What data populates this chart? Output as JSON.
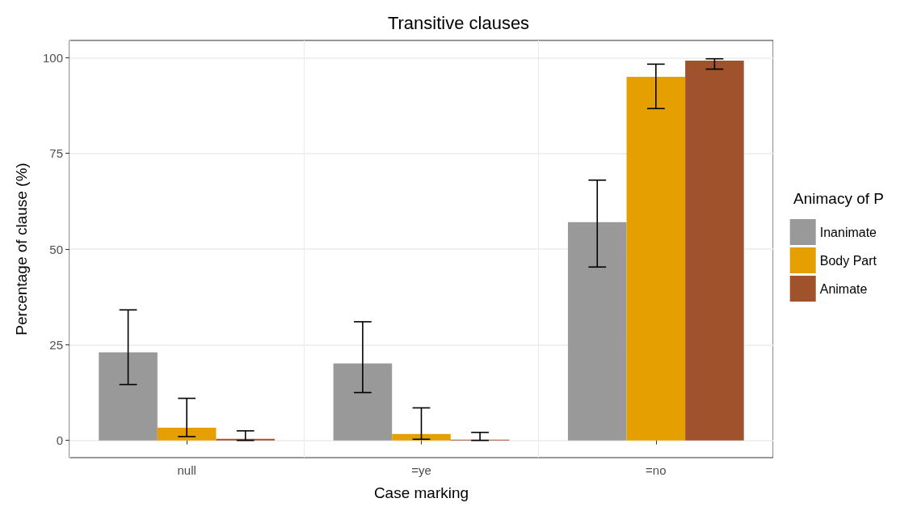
{
  "chart_data": {
    "type": "bar",
    "title": "Transitive clauses",
    "xlabel": "Case marking",
    "ylabel": "Percentage of clause (%)",
    "legend_title": "Animacy of P",
    "categories": [
      "null",
      "=ye",
      "=no"
    ],
    "series": [
      {
        "name": "Inanimate",
        "color": "#999999",
        "values": [
          23,
          20.1,
          57
        ],
        "errors": [
          [
            14.6,
            34.1
          ],
          [
            12.5,
            31
          ],
          [
            45.3,
            68
          ]
        ]
      },
      {
        "name": "Body Part",
        "color": "#e69f00",
        "values": [
          3.3,
          1.7,
          95
        ],
        "errors": [
          [
            1,
            11
          ],
          [
            0.3,
            8.5
          ],
          [
            86.7,
            98.3
          ]
        ]
      },
      {
        "name": "Animate",
        "color": "#a0522d",
        "values": [
          0.4,
          0.2,
          99.2
        ],
        "errors": [
          [
            0,
            2.5
          ],
          [
            0,
            2.1
          ],
          [
            97,
            99.7
          ]
        ]
      }
    ],
    "ylim": [
      -4.5,
      104.5
    ],
    "yticks": [
      0,
      25,
      50,
      75,
      100
    ],
    "grid": true,
    "legend": "right"
  }
}
